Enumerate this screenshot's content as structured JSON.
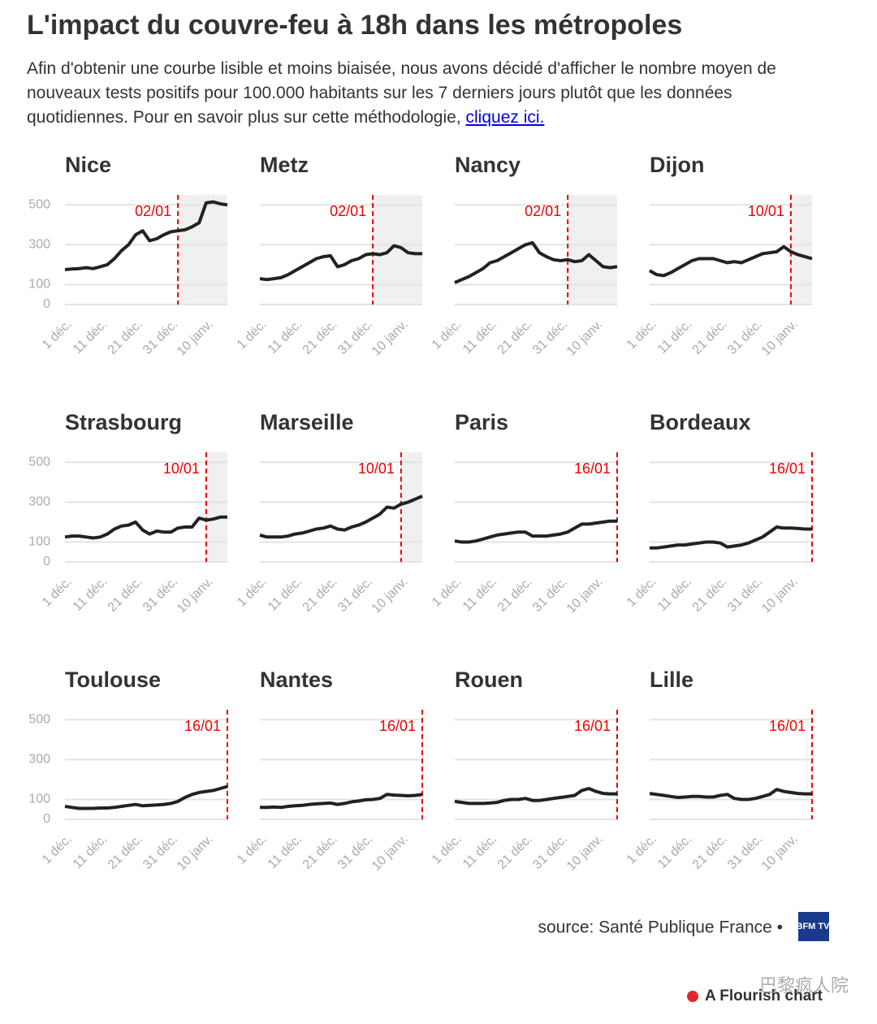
{
  "title": "L'impact du couvre-feu à 18h dans les métropoles",
  "description": "Afin d'obtenir une courbe lisible et moins biaisée, nous avons décidé d'afficher le nombre moyen de nouveaux tests positifs pour 100.000 habitants sur les 7 derniers jours plutôt que les données quotidiennes. Pour en savoir plus sur cette méthodologie,",
  "link_text": "cliquez ici.",
  "source": "source: Santé Publique France •",
  "logo": "BFM TV.",
  "credit": "A Flourish chart",
  "watermark": "巴黎疯人院",
  "chart_data": [
    {
      "type": "line",
      "title": "Nice",
      "color": "#222222",
      "categories": [
        "1 déc.",
        null,
        null,
        null,
        null,
        "11 déc.",
        null,
        null,
        null,
        null,
        "21 déc.",
        null,
        null,
        null,
        null,
        "31 déc.",
        null,
        null,
        null,
        null,
        "10 janv.",
        null,
        null,
        null
      ],
      "values": [
        175,
        178,
        180,
        185,
        180,
        190,
        200,
        230,
        270,
        300,
        350,
        370,
        320,
        330,
        350,
        365,
        370,
        375,
        390,
        410,
        510,
        515,
        505,
        500
      ],
      "ylim": [
        0,
        550
      ],
      "yticks": [
        0,
        100,
        300,
        500
      ],
      "annotation": {
        "text": "02/01",
        "x": 16
      }
    },
    {
      "type": "line",
      "title": "Metz",
      "color": "#222222",
      "categories": [
        "1 déc.",
        null,
        null,
        null,
        null,
        "11 déc.",
        null,
        null,
        null,
        null,
        "21 déc.",
        null,
        null,
        null,
        null,
        "31 déc.",
        null,
        null,
        null,
        null,
        "10 janv.",
        null,
        null,
        null
      ],
      "values": [
        130,
        125,
        130,
        135,
        150,
        170,
        190,
        210,
        230,
        240,
        245,
        190,
        200,
        220,
        230,
        250,
        255,
        250,
        260,
        295,
        285,
        260,
        255,
        255
      ],
      "ylim": [
        0,
        550
      ],
      "yticks": [
        0,
        100,
        300,
        500
      ],
      "annotation": {
        "text": "02/01",
        "x": 16
      }
    },
    {
      "type": "line",
      "title": "Nancy",
      "color": "#222222",
      "categories": [
        "1 déc.",
        null,
        null,
        null,
        null,
        "11 déc.",
        null,
        null,
        null,
        null,
        "21 déc.",
        null,
        null,
        null,
        null,
        "31 déc.",
        null,
        null,
        null,
        null,
        "10 janv.",
        null,
        null,
        null
      ],
      "values": [
        110,
        125,
        140,
        160,
        180,
        210,
        220,
        240,
        260,
        280,
        300,
        310,
        260,
        240,
        225,
        220,
        225,
        215,
        220,
        250,
        220,
        190,
        185,
        190
      ],
      "ylim": [
        0,
        550
      ],
      "yticks": [
        0,
        100,
        300,
        500
      ],
      "annotation": {
        "text": "02/01",
        "x": 16
      }
    },
    {
      "type": "line",
      "title": "Dijon",
      "color": "#222222",
      "categories": [
        "1 déc.",
        null,
        null,
        null,
        null,
        "11 déc.",
        null,
        null,
        null,
        null,
        "21 déc.",
        null,
        null,
        null,
        null,
        "31 déc.",
        null,
        null,
        null,
        null,
        "10 janv.",
        null,
        null,
        null
      ],
      "values": [
        170,
        150,
        145,
        160,
        180,
        200,
        220,
        230,
        230,
        230,
        220,
        210,
        215,
        210,
        225,
        240,
        255,
        260,
        265,
        290,
        265,
        250,
        240,
        230
      ],
      "ylim": [
        0,
        550
      ],
      "yticks": [
        0,
        100,
        300,
        500
      ],
      "annotation": {
        "text": "10/01",
        "x": 20
      }
    },
    {
      "type": "line",
      "title": "Strasbourg",
      "color": "#222222",
      "categories": [
        "1 déc.",
        null,
        null,
        null,
        null,
        "11 déc.",
        null,
        null,
        null,
        null,
        "21 déc.",
        null,
        null,
        null,
        null,
        "31 déc.",
        null,
        null,
        null,
        null,
        "10 janv.",
        null,
        null,
        null
      ],
      "values": [
        125,
        130,
        130,
        125,
        120,
        125,
        140,
        165,
        180,
        185,
        200,
        160,
        140,
        155,
        150,
        150,
        170,
        175,
        175,
        220,
        210,
        215,
        225,
        225
      ],
      "ylim": [
        0,
        550
      ],
      "yticks": [
        0,
        100,
        300,
        500
      ],
      "annotation": {
        "text": "10/01",
        "x": 20
      }
    },
    {
      "type": "line",
      "title": "Marseille",
      "color": "#222222",
      "categories": [
        "1 déc.",
        null,
        null,
        null,
        null,
        "11 déc.",
        null,
        null,
        null,
        null,
        "21 déc.",
        null,
        null,
        null,
        null,
        "31 déc.",
        null,
        null,
        null,
        null,
        "10 janv.",
        null,
        null,
        null
      ],
      "values": [
        135,
        125,
        125,
        125,
        130,
        140,
        145,
        155,
        165,
        170,
        180,
        165,
        160,
        175,
        185,
        200,
        220,
        240,
        275,
        270,
        290,
        300,
        315,
        330
      ],
      "ylim": [
        0,
        550
      ],
      "yticks": [
        0,
        100,
        300,
        500
      ],
      "annotation": {
        "text": "10/01",
        "x": 20
      }
    },
    {
      "type": "line",
      "title": "Paris",
      "color": "#222222",
      "categories": [
        "1 déc.",
        null,
        null,
        null,
        null,
        "11 déc.",
        null,
        null,
        null,
        null,
        "21 déc.",
        null,
        null,
        null,
        null,
        "31 déc.",
        null,
        null,
        null,
        null,
        "10 janv.",
        null,
        null,
        null
      ],
      "values": [
        105,
        100,
        100,
        105,
        115,
        125,
        135,
        140,
        145,
        150,
        150,
        130,
        130,
        130,
        135,
        140,
        150,
        170,
        190,
        190,
        195,
        200,
        205,
        205
      ],
      "ylim": [
        0,
        550
      ],
      "yticks": [
        0,
        100,
        300,
        500
      ],
      "annotation": {
        "text": "16/01",
        "x": 23
      }
    },
    {
      "type": "line",
      "title": "Bordeaux",
      "color": "#222222",
      "categories": [
        "1 déc.",
        null,
        null,
        null,
        null,
        "11 déc.",
        null,
        null,
        null,
        null,
        "21 déc.",
        null,
        null,
        null,
        null,
        "31 déc.",
        null,
        null,
        null,
        null,
        "10 janv.",
        null,
        null,
        null
      ],
      "values": [
        70,
        70,
        75,
        80,
        85,
        85,
        90,
        95,
        100,
        100,
        95,
        75,
        80,
        85,
        95,
        110,
        125,
        150,
        175,
        170,
        170,
        168,
        165,
        165
      ],
      "ylim": [
        0,
        550
      ],
      "yticks": [
        0,
        100,
        300,
        500
      ],
      "annotation": {
        "text": "16/01",
        "x": 23
      }
    },
    {
      "type": "line",
      "title": "Toulouse",
      "color": "#222222",
      "categories": [
        "1 déc.",
        null,
        null,
        null,
        null,
        "11 déc.",
        null,
        null,
        null,
        null,
        "21 déc.",
        null,
        null,
        null,
        null,
        "31 déc.",
        null,
        null,
        null,
        null,
        "10 janv.",
        null,
        null,
        null
      ],
      "values": [
        65,
        60,
        55,
        55,
        55,
        57,
        57,
        60,
        65,
        70,
        75,
        68,
        70,
        72,
        75,
        80,
        90,
        110,
        125,
        135,
        140,
        145,
        155,
        165
      ],
      "ylim": [
        0,
        550
      ],
      "yticks": [
        0,
        100,
        300,
        500
      ],
      "annotation": {
        "text": "16/01",
        "x": 23
      }
    },
    {
      "type": "line",
      "title": "Nantes",
      "color": "#222222",
      "categories": [
        "1 déc.",
        null,
        null,
        null,
        null,
        "11 déc.",
        null,
        null,
        null,
        null,
        "21 déc.",
        null,
        null,
        null,
        null,
        "31 déc.",
        null,
        null,
        null,
        null,
        "10 janv.",
        null,
        null,
        null
      ],
      "values": [
        60,
        60,
        62,
        60,
        65,
        68,
        70,
        75,
        78,
        80,
        82,
        75,
        80,
        88,
        92,
        98,
        100,
        105,
        125,
        122,
        120,
        118,
        120,
        125
      ],
      "ylim": [
        0,
        550
      ],
      "yticks": [
        0,
        100,
        300,
        500
      ],
      "annotation": {
        "text": "16/01",
        "x": 23
      }
    },
    {
      "type": "line",
      "title": "Rouen",
      "color": "#222222",
      "categories": [
        "1 déc.",
        null,
        null,
        null,
        null,
        "11 déc.",
        null,
        null,
        null,
        null,
        "21 déc.",
        null,
        null,
        null,
        null,
        "31 déc.",
        null,
        null,
        null,
        null,
        "10 janv.",
        null,
        null,
        null
      ],
      "values": [
        90,
        85,
        80,
        80,
        80,
        82,
        85,
        95,
        100,
        100,
        105,
        95,
        95,
        100,
        105,
        110,
        115,
        120,
        145,
        155,
        140,
        130,
        128,
        128
      ],
      "ylim": [
        0,
        550
      ],
      "yticks": [
        0,
        100,
        300,
        500
      ],
      "annotation": {
        "text": "16/01",
        "x": 23
      }
    },
    {
      "type": "line",
      "title": "Lille",
      "color": "#222222",
      "categories": [
        "1 déc.",
        null,
        null,
        null,
        null,
        "11 déc.",
        null,
        null,
        null,
        null,
        "21 déc.",
        null,
        null,
        null,
        null,
        "31 déc.",
        null,
        null,
        null,
        null,
        "10 janv.",
        null,
        null,
        null
      ],
      "values": [
        130,
        125,
        120,
        115,
        110,
        112,
        115,
        115,
        112,
        112,
        120,
        125,
        105,
        100,
        100,
        105,
        115,
        125,
        150,
        140,
        135,
        130,
        128,
        128
      ],
      "ylim": [
        0,
        550
      ],
      "yticks": [
        0,
        100,
        300,
        500
      ],
      "annotation": {
        "text": "16/01",
        "x": 23
      }
    }
  ]
}
